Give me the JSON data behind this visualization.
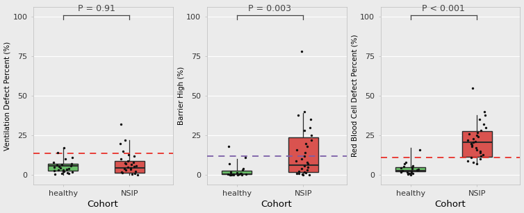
{
  "panels": [
    {
      "ylabel": "Ventilation Defect Percent (%)",
      "xlabel": "Cohort",
      "pvalue": "P = 0.91",
      "dashed_line_y": 13.5,
      "dashed_color": "#e8302a",
      "ylim": [
        -6,
        106
      ],
      "yticks": [
        0,
        25,
        50,
        75,
        100
      ],
      "healthy_box": {
        "q1": 2.8,
        "median": 6.0,
        "q3": 6.9,
        "whislo": 0.0,
        "whishi": 17.0
      },
      "nsip_box": {
        "q1": 1.5,
        "median": 4.4,
        "q3": 8.7,
        "whislo": 0.0,
        "whishi": 22.0
      },
      "healthy_points": [
        0.5,
        1.0,
        1.2,
        1.5,
        2.0,
        2.2,
        2.5,
        2.8,
        3.0,
        3.2,
        3.5,
        4.0,
        4.5,
        5.0,
        5.5,
        6.0,
        6.2,
        6.5,
        7.0,
        8.0,
        10.0,
        11.0,
        14.0,
        17.0
      ],
      "nsip_points": [
        0.2,
        0.5,
        1.0,
        1.5,
        2.0,
        2.5,
        3.0,
        3.5,
        4.0,
        4.4,
        5.0,
        5.5,
        6.0,
        6.5,
        7.0,
        7.5,
        8.0,
        9.0,
        10.0,
        12.0,
        13.0,
        15.0,
        20.0,
        22.0,
        32.0
      ]
    },
    {
      "ylabel": "Barrier High (%)",
      "xlabel": "Cohort",
      "pvalue": "P = 0.003",
      "dashed_line_y": 12.0,
      "dashed_color": "#7b5ea7",
      "ylim": [
        -6,
        106
      ],
      "yticks": [
        0,
        25,
        50,
        75,
        100
      ],
      "healthy_box": {
        "q1": 0.33,
        "median": 0.53,
        "q3": 2.9,
        "whislo": 0.0,
        "whishi": 10.0
      },
      "nsip_box": {
        "q1": 1.8,
        "median": 6.2,
        "q3": 23.9,
        "whislo": 0.0,
        "whishi": 39.0
      },
      "healthy_points": [
        0.05,
        0.1,
        0.15,
        0.2,
        0.25,
        0.3,
        0.35,
        0.4,
        0.5,
        0.6,
        0.7,
        0.8,
        1.0,
        1.2,
        1.5,
        2.0,
        3.0,
        4.0,
        7.0,
        11.0,
        18.0
      ],
      "nsip_points": [
        0.2,
        0.3,
        0.5,
        0.8,
        1.0,
        1.5,
        2.0,
        2.5,
        3.0,
        4.0,
        5.0,
        6.0,
        7.0,
        8.0,
        9.0,
        10.0,
        12.0,
        14.0,
        16.0,
        18.0,
        20.0,
        22.0,
        25.0,
        28.0,
        30.0,
        35.0,
        38.0,
        40.0,
        78.0
      ]
    },
    {
      "ylabel": "Red Blood Cell Defect Percent (%)",
      "xlabel": "Cohort",
      "pvalue": "P < 0.001",
      "dashed_line_y": 11.0,
      "dashed_color": "#e8302a",
      "ylim": [
        -6,
        106
      ],
      "yticks": [
        0,
        25,
        50,
        75,
        100
      ],
      "healthy_box": {
        "q1": 2.3,
        "median": 2.8,
        "q3": 4.9,
        "whislo": 0.0,
        "whishi": 17.0
      },
      "nsip_box": {
        "q1": 11.6,
        "median": 20.6,
        "q3": 27.8,
        "whislo": 7.0,
        "whishi": 38.0
      },
      "healthy_points": [
        0.2,
        0.5,
        0.8,
        1.0,
        1.2,
        1.5,
        1.8,
        2.0,
        2.2,
        2.5,
        2.8,
        3.0,
        3.2,
        3.5,
        4.0,
        4.5,
        5.0,
        5.5,
        6.0,
        7.0,
        8.0,
        16.0
      ],
      "nsip_points": [
        7.0,
        8.0,
        9.0,
        10.0,
        11.0,
        12.0,
        13.0,
        14.0,
        15.0,
        16.0,
        17.0,
        18.0,
        19.0,
        20.0,
        20.6,
        21.0,
        22.0,
        23.0,
        24.0,
        25.0,
        26.0,
        27.0,
        28.0,
        30.0,
        32.0,
        35.0,
        38.0,
        40.0,
        55.0
      ]
    }
  ],
  "healthy_box_color": "#6abf69",
  "nsip_box_color": "#d9534f",
  "box_edge_color": "#2a2a2a",
  "median_color": "#2a2a2a",
  "dot_color": "#111111",
  "dot_size": 6,
  "background_color": "#ebebeb",
  "panel_bg_color": "#ebebeb",
  "bracket_color": "#444444",
  "font_size_ylabel": 7.5,
  "font_size_xlabel": 9.5,
  "font_size_ticks": 8,
  "font_size_pvalue": 9,
  "xticklabels": [
    "healthy",
    "NSIP"
  ]
}
